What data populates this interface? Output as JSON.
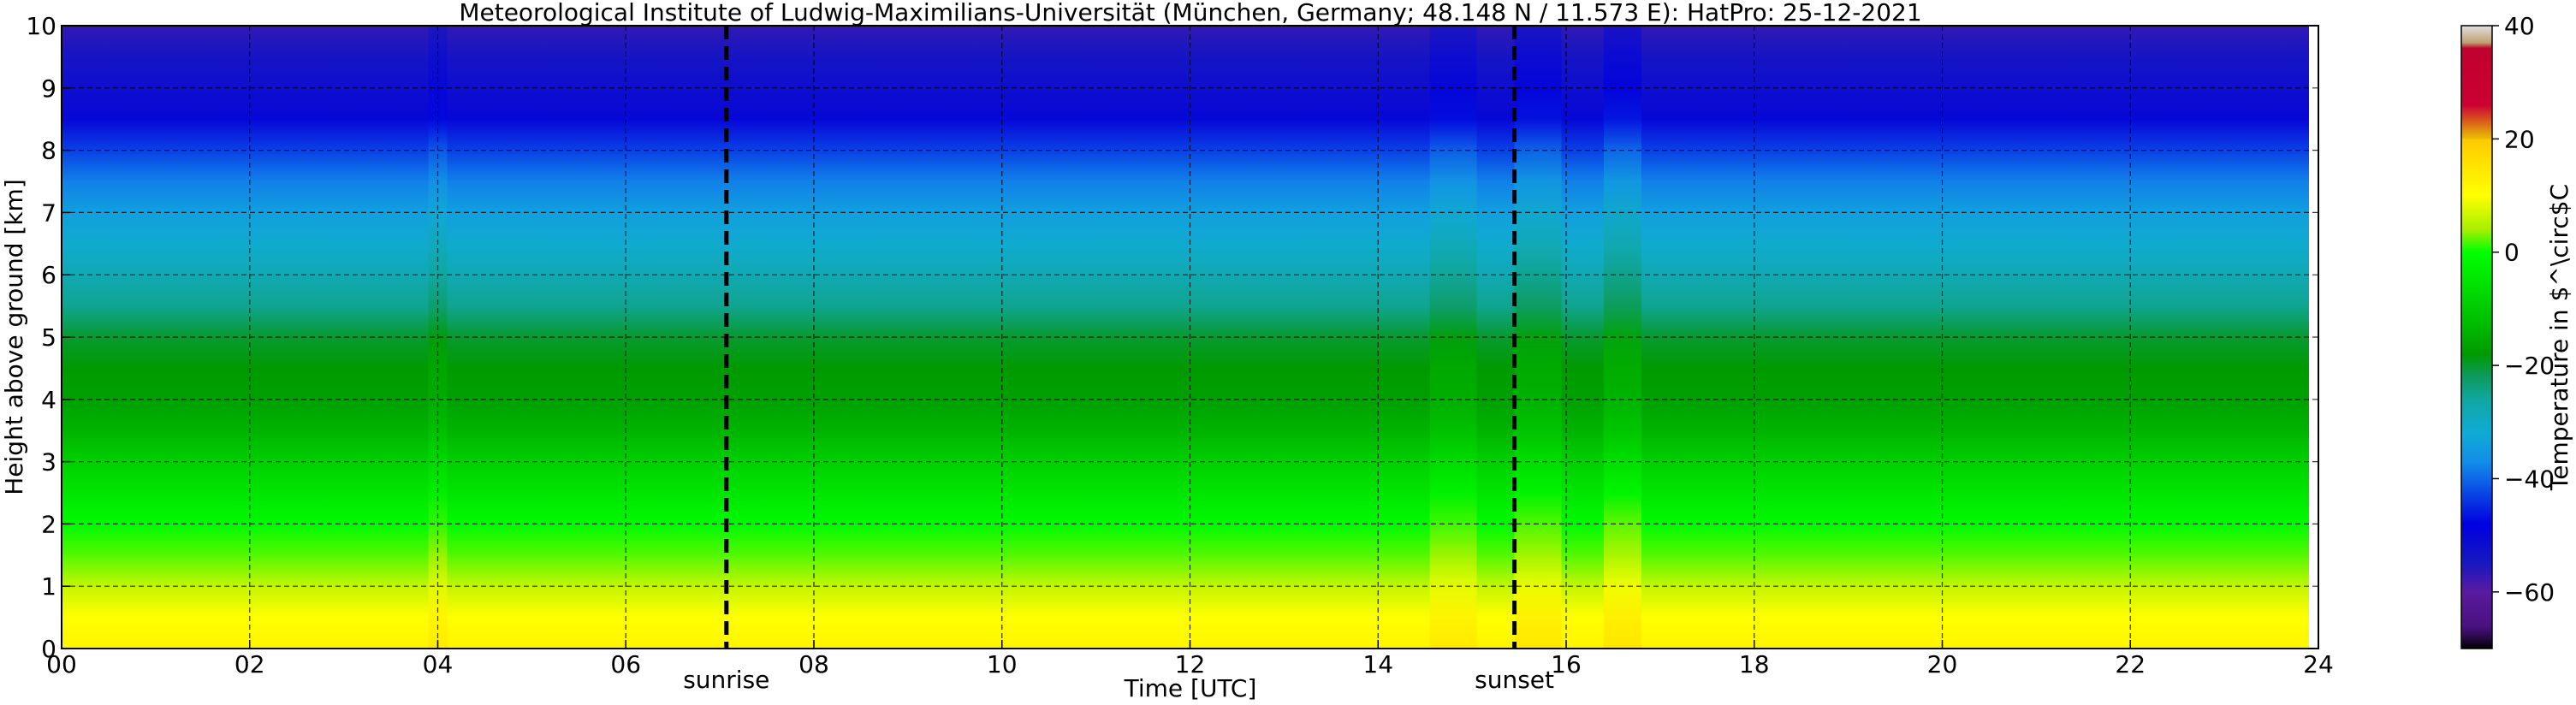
{
  "chart_data": {
    "type": "heatmap",
    "title": "Meteorological Institute of Ludwig-Maximilians-Universität (München, Germany; 48.148 N / 11.573 E):    HatPro: 25-12-2021",
    "xlabel": "Time [UTC]",
    "ylabel": "Height above ground [km]",
    "xlim": [
      0,
      24
    ],
    "ylim": [
      0,
      10
    ],
    "x_ticks": [
      "00",
      "02",
      "04",
      "06",
      "08",
      "10",
      "12",
      "14",
      "16",
      "18",
      "20",
      "22",
      "24"
    ],
    "x_tick_values": [
      0,
      2,
      4,
      6,
      8,
      10,
      12,
      14,
      16,
      18,
      20,
      22,
      24
    ],
    "y_ticks": [
      "0",
      "1",
      "2",
      "3",
      "4",
      "5",
      "6",
      "7",
      "8",
      "9",
      "10"
    ],
    "y_tick_values": [
      0,
      1,
      2,
      3,
      4,
      5,
      6,
      7,
      8,
      9,
      10
    ],
    "grid": true,
    "annotations": [
      {
        "label": "sunrise",
        "x": 7.07
      },
      {
        "label": "sunset",
        "x": 15.45
      }
    ],
    "colorbar": {
      "label": "Temperature in $^\\circ$C",
      "ticks": [
        "40",
        "20",
        "0",
        "−20",
        "−40",
        "−60"
      ],
      "tick_values": [
        40,
        20,
        0,
        -20,
        -40,
        -60
      ],
      "range": [
        -70,
        40
      ],
      "colors": [
        {
          "t": -70,
          "color": "#000000"
        },
        {
          "t": -68,
          "color": "#2a0a4a"
        },
        {
          "t": -66,
          "color": "#4a1180"
        },
        {
          "t": -60,
          "color": "#5a1aa0"
        },
        {
          "t": -55,
          "color": "#1818c0"
        },
        {
          "t": -48,
          "color": "#0000e0"
        },
        {
          "t": -42,
          "color": "#0a4ee6"
        },
        {
          "t": -37,
          "color": "#138ee8"
        },
        {
          "t": -32,
          "color": "#10aad8"
        },
        {
          "t": -26,
          "color": "#10a8a0"
        },
        {
          "t": -22,
          "color": "#0e9a60"
        },
        {
          "t": -18,
          "color": "#009a00"
        },
        {
          "t": -12,
          "color": "#00c000"
        },
        {
          "t": -6,
          "color": "#00e000"
        },
        {
          "t": 0,
          "color": "#00ff00"
        },
        {
          "t": 4,
          "color": "#a6f000"
        },
        {
          "t": 10,
          "color": "#ffff00"
        },
        {
          "t": 16,
          "color": "#ffe000"
        },
        {
          "t": 20,
          "color": "#ffc800"
        },
        {
          "t": 20.01,
          "color": "#e8c000"
        },
        {
          "t": 26,
          "color": "#cc0033"
        },
        {
          "t": 36,
          "color": "#c00030"
        },
        {
          "t": 37,
          "color": "#c0a070"
        },
        {
          "t": 40,
          "color": "#e0e0e0"
        }
      ]
    },
    "profile": {
      "height_km": [
        0,
        0.5,
        1.0,
        1.5,
        2.0,
        2.5,
        3.0,
        3.5,
        4.0,
        4.5,
        5.0,
        5.5,
        6.0,
        6.5,
        7.0,
        7.5,
        8.0,
        8.5,
        9.0,
        9.5,
        10.0
      ],
      "temperature_c": [
        12,
        10,
        6,
        2,
        -1,
        -5,
        -9,
        -14,
        -17,
        -18,
        -20,
        -25,
        -28,
        -31,
        -34,
        -38,
        -43,
        -50,
        -52,
        -54,
        -57
      ]
    },
    "warm_episodes": [
      {
        "x": 4.0,
        "width": 0.2,
        "delta": 2.5
      },
      {
        "x": 14.8,
        "width": 0.5,
        "delta": 3.0
      },
      {
        "x": 15.7,
        "width": 0.5,
        "delta": 3.5
      },
      {
        "x": 16.6,
        "width": 0.4,
        "delta": 4.0
      }
    ],
    "data_end_x": 23.9
  }
}
